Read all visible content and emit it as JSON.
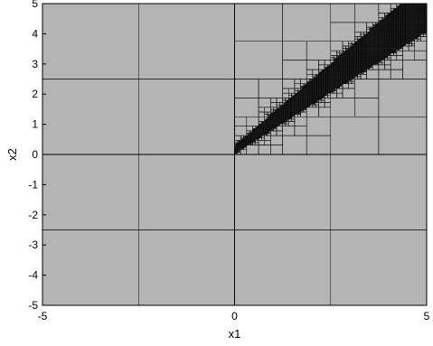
{
  "chart_data": {
    "type": "subdivision",
    "xlabel": "x1",
    "ylabel": "x2",
    "xlim": [
      -5,
      5
    ],
    "ylim": [
      -5,
      5
    ],
    "xticks": [
      -5,
      0,
      5
    ],
    "yticks": [
      -5,
      -4,
      -3,
      -2,
      -1,
      0,
      1,
      2,
      3,
      4,
      5
    ],
    "xtick_labels": [
      "-5",
      "0",
      "5"
    ],
    "ytick_labels": [
      "-5",
      "-4",
      "-3",
      "-2",
      "-1",
      "0",
      "1",
      "2",
      "3",
      "4",
      "5"
    ],
    "grid": false,
    "region_diagonal": {
      "slope": 0.95,
      "intercept": 0.15,
      "half_width_at_origin": 0.08,
      "half_width_growth": 0.14
    },
    "min_depth": 2,
    "max_depth": 9,
    "colors": {
      "background": "#b4b4b4",
      "lines": "#000000",
      "axes_text": "#000000"
    }
  }
}
